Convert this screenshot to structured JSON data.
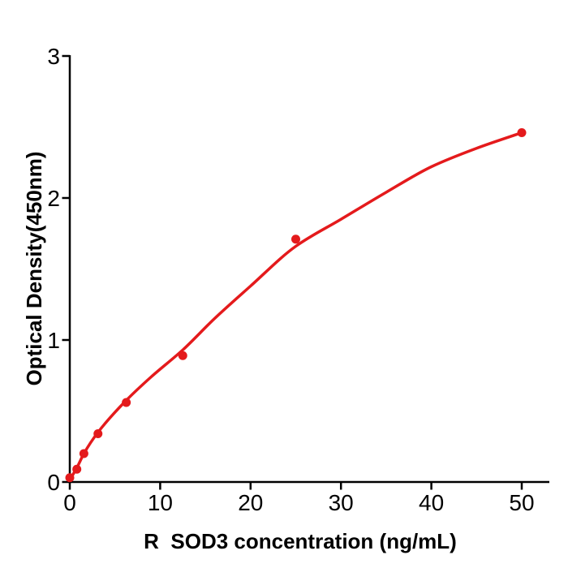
{
  "chart_data": {
    "type": "scatter",
    "title": "",
    "xlabel": "R  SOD3 concentration (ng/mL)",
    "ylabel": "Optical Density(450nm)",
    "x": [
      0,
      0.78,
      1.56,
      3.12,
      6.25,
      12.5,
      25,
      50
    ],
    "y": [
      0.03,
      0.09,
      0.2,
      0.34,
      0.56,
      0.89,
      1.71,
      2.46
    ],
    "fit_curve": {
      "description": "4PL standard-curve fit",
      "x": [
        0,
        0.78,
        1.56,
        3.12,
        6.25,
        9,
        12.5,
        16,
        20,
        25,
        30,
        35,
        40,
        45,
        50
      ],
      "y": [
        0.015,
        0.1,
        0.2,
        0.35,
        0.575,
        0.74,
        0.93,
        1.15,
        1.38,
        1.66,
        1.85,
        2.04,
        2.22,
        2.35,
        2.46
      ]
    },
    "xticks": [
      0,
      10,
      20,
      30,
      40,
      50
    ],
    "yticks": [
      0,
      1,
      2,
      3
    ],
    "xlim": [
      0,
      53
    ],
    "ylim": [
      0,
      3
    ],
    "grid": false,
    "legend": null,
    "colors": {
      "points": "#e41a1c",
      "line": "#e41a1c",
      "axis": "#000000",
      "text": "#000000",
      "background": "#ffffff"
    }
  }
}
